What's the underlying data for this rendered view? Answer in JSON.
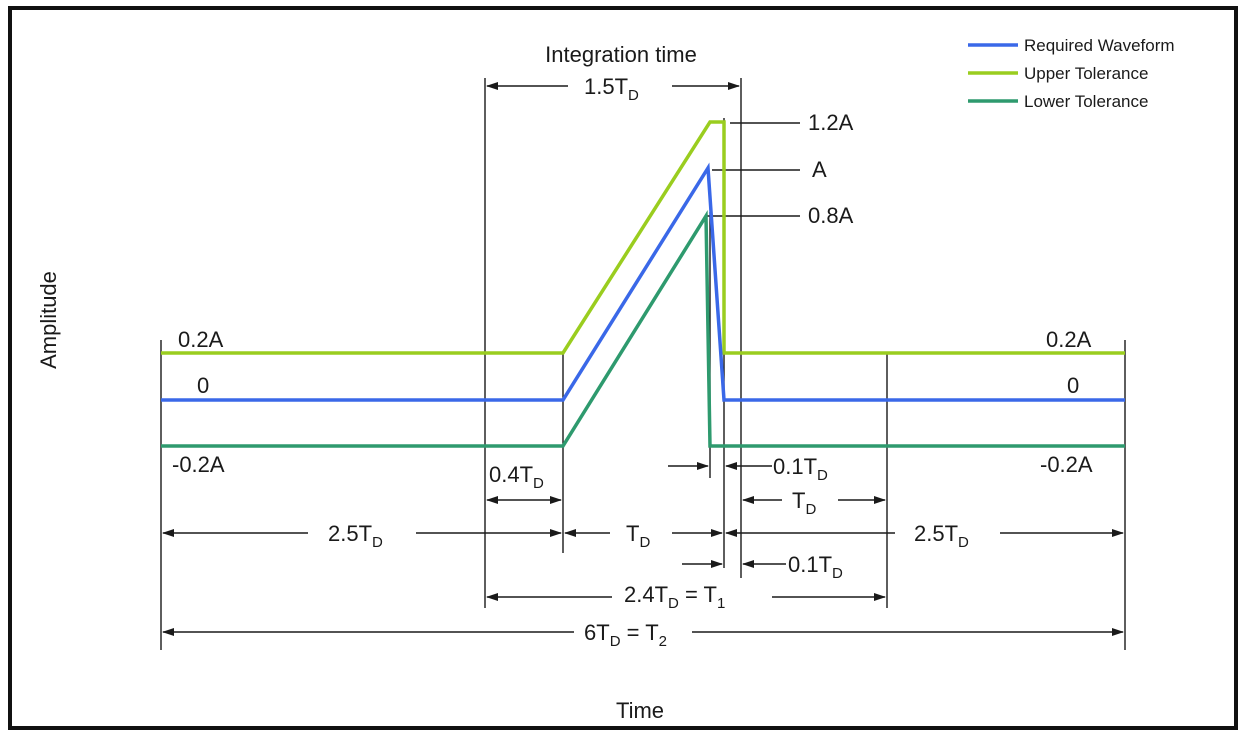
{
  "diagram": {
    "axis_labels": {
      "y": "Amplitude",
      "x": "Time"
    },
    "title_top": "Integration time",
    "legend": [
      {
        "label": "Required Waveform",
        "color": "#3a68e8"
      },
      {
        "label": "Upper Tolerance",
        "color": "#9acd1f"
      },
      {
        "label": "Lower Tolerance",
        "color": "#2e9a6e"
      }
    ],
    "colors": {
      "required": "#3a68e8",
      "upper": "#9acd1f",
      "lower": "#2e9a6e",
      "line": "#1a1a1a"
    },
    "level_labels": {
      "upper_left": "0.2A",
      "zero_left": "0",
      "lower_left": "-0.2A",
      "upper_right": "0.2A",
      "zero_right": "0",
      "lower_right": "-0.2A",
      "peak_upper": "1.2A",
      "peak": "A",
      "peak_lower": "0.8A"
    },
    "dimensions": {
      "integration": {
        "main": "1.5T",
        "sub": "D"
      },
      "rise_offset": {
        "main": "0.4T",
        "sub": "D"
      },
      "fall_offset_top": {
        "main": "0.1T",
        "sub": "D"
      },
      "td_right": {
        "main": "T",
        "sub": "D"
      },
      "left_span": {
        "main": "2.5T",
        "sub": "D"
      },
      "rise": {
        "main": "T",
        "sub": "D"
      },
      "right_span": {
        "main": "2.5T",
        "sub": "D"
      },
      "fall_offset_bottom": {
        "main": "0.1T",
        "sub": "D"
      },
      "t1": {
        "main": "2.4T",
        "sub": "D",
        "eq": " = T",
        "sub2": "1"
      },
      "t2": {
        "main": "6T",
        "sub": "D",
        "eq": " = T",
        "sub2": "2"
      }
    }
  }
}
